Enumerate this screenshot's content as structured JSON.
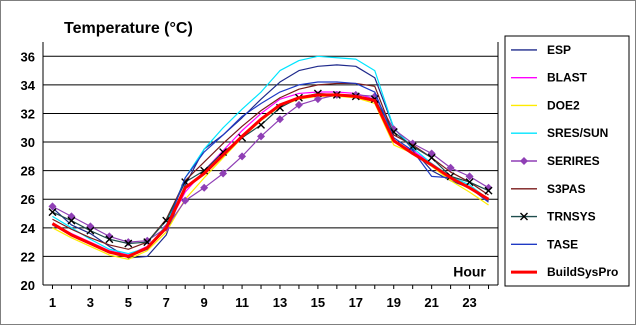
{
  "chart_data": {
    "type": "line",
    "title": "Temperature (°C)",
    "xlabel": "Hour",
    "ylabel": "",
    "xlim": [
      1,
      24
    ],
    "ylim": [
      20,
      37
    ],
    "x_tick_labels": [
      "1",
      "3",
      "5",
      "7",
      "9",
      "11",
      "13",
      "15",
      "17",
      "19",
      "21",
      "23"
    ],
    "y_tick_labels": [
      "20",
      "22",
      "24",
      "26",
      "28",
      "30",
      "32",
      "34",
      "36"
    ],
    "grid": "horizontal",
    "legend_position": "right",
    "x": [
      1,
      2,
      3,
      4,
      5,
      6,
      7,
      8,
      9,
      10,
      11,
      12,
      13,
      14,
      15,
      16,
      17,
      18,
      19,
      20,
      21,
      22,
      23,
      24
    ],
    "series": [
      {
        "name": "ESP",
        "color": "#1f2a8c",
        "marker": "none",
        "values": [
          25.4,
          24.2,
          23.6,
          22.7,
          21.9,
          22.0,
          23.5,
          27.0,
          29.5,
          30.5,
          31.7,
          33.0,
          34.2,
          35.0,
          35.3,
          35.4,
          35.3,
          34.5,
          31.0,
          29.5,
          28.0,
          27.3,
          26.8,
          25.9
        ]
      },
      {
        "name": "BLAST",
        "color": "#ff00ff",
        "marker": "none",
        "values": [
          24.3,
          23.6,
          23.0,
          22.4,
          22.1,
          22.7,
          24.0,
          26.5,
          28.0,
          29.4,
          30.8,
          32.0,
          33.0,
          33.4,
          33.5,
          33.5,
          33.4,
          33.0,
          30.0,
          29.4,
          28.5,
          27.5,
          26.8,
          26.0
        ]
      },
      {
        "name": "DOE2",
        "color": "#ffeb00",
        "marker": "none",
        "values": [
          24.0,
          23.3,
          22.7,
          22.1,
          21.8,
          22.4,
          23.7,
          26.0,
          27.5,
          28.9,
          30.3,
          31.5,
          32.5,
          33.0,
          33.2,
          33.2,
          33.1,
          32.7,
          29.8,
          29.2,
          28.3,
          27.3,
          26.5,
          25.6
        ]
      },
      {
        "name": "SRES/SUN",
        "color": "#00e5ff",
        "marker": "none",
        "values": [
          24.8,
          24.0,
          23.2,
          22.5,
          22.2,
          22.6,
          24.2,
          27.5,
          29.5,
          31.0,
          32.3,
          33.5,
          35.0,
          35.7,
          36.0,
          35.9,
          35.8,
          35.0,
          31.0,
          29.6,
          28.5,
          27.6,
          27.0,
          26.0
        ]
      },
      {
        "name": "SERIRES",
        "color": "#8f3fb5",
        "marker": "diamond",
        "values": [
          25.5,
          24.8,
          24.1,
          23.4,
          23.0,
          23.1,
          24.0,
          25.9,
          26.8,
          27.8,
          29.0,
          30.4,
          31.6,
          32.6,
          33.0,
          33.3,
          33.3,
          33.2,
          30.9,
          29.9,
          29.2,
          28.2,
          27.6,
          26.8
        ]
      },
      {
        "name": "S3PAS",
        "color": "#7a1a1a",
        "marker": "none",
        "values": [
          24.6,
          23.9,
          23.3,
          22.8,
          22.5,
          23.0,
          24.6,
          27.3,
          28.6,
          29.9,
          31.1,
          32.2,
          33.1,
          33.7,
          34.0,
          34.1,
          34.1,
          33.9,
          30.5,
          29.8,
          28.9,
          27.9,
          27.2,
          26.3
        ]
      },
      {
        "name": "TRNSYS",
        "color": "#1e4d4d",
        "marker": "x",
        "values": [
          25.1,
          24.5,
          23.8,
          23.2,
          22.9,
          23.0,
          24.5,
          27.2,
          28.0,
          29.3,
          30.3,
          31.2,
          32.4,
          33.1,
          33.4,
          33.3,
          33.2,
          33.0,
          30.7,
          29.7,
          28.9,
          27.6,
          27.2,
          26.6
        ]
      },
      {
        "name": "TASE",
        "color": "#1f3ac4",
        "marker": "none",
        "values": [
          24.2,
          23.5,
          22.9,
          22.3,
          22.0,
          22.5,
          24.0,
          27.5,
          29.3,
          30.5,
          31.8,
          32.7,
          33.5,
          34.0,
          34.2,
          34.2,
          34.1,
          33.5,
          30.3,
          29.4,
          27.6,
          27.5,
          26.8,
          25.8
        ]
      },
      {
        "name": "BuildSysPro",
        "color": "#ff0000",
        "marker": "none",
        "width": 3,
        "values": [
          24.3,
          23.5,
          22.9,
          22.3,
          22.0,
          22.6,
          24.0,
          26.8,
          27.8,
          29.1,
          30.4,
          31.6,
          32.6,
          33.1,
          33.3,
          33.3,
          33.2,
          32.9,
          30.1,
          29.2,
          28.4,
          27.5,
          26.8,
          26.0
        ]
      }
    ]
  },
  "styles": {
    "background": "#ffffff",
    "plot_background": "#ffffff",
    "grid_color": "#000000",
    "frame_color": "#7f7f7f"
  }
}
